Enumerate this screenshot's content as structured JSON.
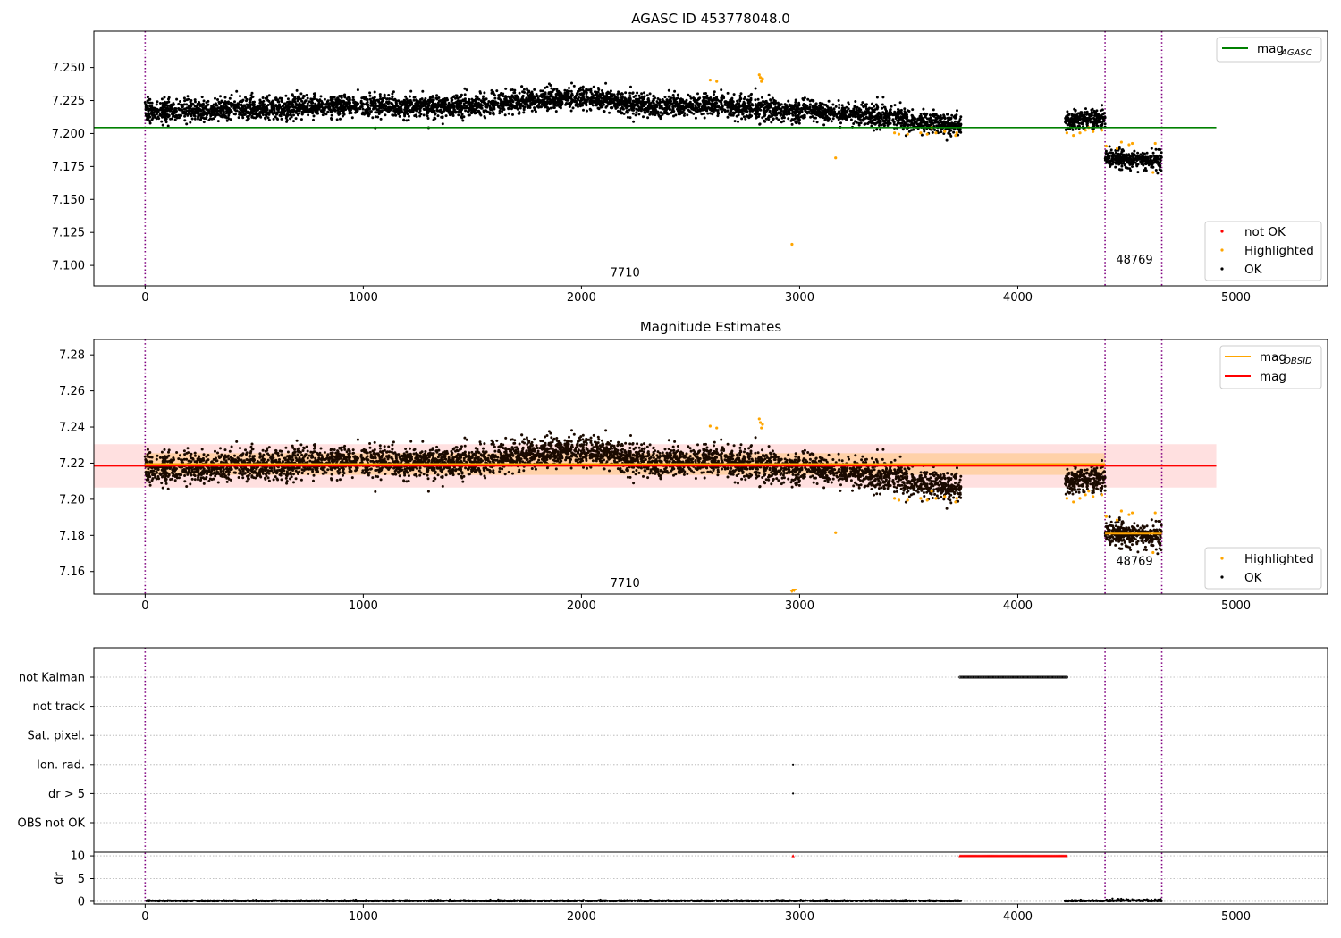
{
  "chart_data": [
    {
      "type": "scatter",
      "title": "AGASC ID 453778048.0",
      "xlim": [
        -235,
        5420
      ],
      "ylim": [
        7.0845,
        7.2775
      ],
      "xticks": [
        0,
        1000,
        2000,
        3000,
        4000,
        5000
      ],
      "yticks": [
        7.1,
        7.125,
        7.15,
        7.175,
        7.2,
        7.225,
        7.25
      ],
      "ytick_labels": [
        "7.100",
        "7.125",
        "7.150",
        "7.175",
        "7.200",
        "7.225",
        "7.250"
      ],
      "vlines": [
        0,
        4400,
        4660
      ],
      "hline": {
        "name": "mag",
        "sub": "AGASC",
        "y": 7.2045,
        "x": [
          -235,
          4910
        ],
        "color": "#008000"
      },
      "obs_labels": [
        {
          "text": "7710",
          "x": 2200,
          "y": 7.0915
        },
        {
          "text": "48769",
          "x": 4535,
          "y": 7.1015
        }
      ],
      "segments": [
        {
          "x": [
            0,
            3740
          ],
          "base": [
            7.2175,
            7.2175,
            7.2195,
            7.221,
            7.2205,
            7.2205,
            7.2245,
            7.2275,
            7.2205,
            7.2215,
            7.2185,
            7.216,
            7.2115,
            7.206
          ],
          "spread": 0.0042
        },
        {
          "x": [
            4215,
            4400
          ],
          "base": [
            7.2105,
            7.211
          ],
          "spread": 0.0036
        },
        {
          "x": [
            4400,
            4660
          ],
          "base": [
            7.1815,
            7.1795
          ],
          "spread": 0.0034
        }
      ],
      "highlighted": [
        [
          2590,
          7.2405
        ],
        [
          2620,
          7.2395
        ],
        [
          2815,
          7.2445
        ],
        [
          2820,
          7.2425
        ],
        [
          2825,
          7.2395
        ],
        [
          2830,
          7.2415
        ],
        [
          3165,
          7.1815
        ],
        [
          2965,
          7.116
        ],
        [
          3435,
          7.2005
        ],
        [
          3455,
          7.1995
        ],
        [
          3495,
          7.1995
        ],
        [
          3555,
          7.2005
        ],
        [
          3585,
          7.1995
        ],
        [
          3605,
          7.2045
        ],
        [
          3625,
          7.2005
        ],
        [
          3665,
          7.2015
        ],
        [
          3715,
          7.1985
        ],
        [
          3720,
          7.2005
        ],
        [
          4225,
          7.2005
        ],
        [
          4255,
          7.1985
        ],
        [
          4285,
          7.2005
        ],
        [
          4310,
          7.2025
        ],
        [
          4325,
          7.2045
        ],
        [
          4345,
          7.2015
        ],
        [
          4385,
          7.2025
        ],
        [
          4405,
          7.1905
        ],
        [
          4455,
          7.1885
        ],
        [
          4475,
          7.1935
        ],
        [
          4510,
          7.1915
        ],
        [
          4525,
          7.1925
        ],
        [
          4620,
          7.1705
        ],
        [
          4630,
          7.1925
        ]
      ],
      "legend_lines": [
        {
          "name": "mag",
          "sub": "AGASC",
          "color": "#008000"
        }
      ],
      "legend_points": [
        {
          "name": "not OK",
          "color": "#ff0000"
        },
        {
          "name": "Highlighted",
          "color": "#ffa500"
        },
        {
          "name": "OK",
          "color": "#000000"
        }
      ]
    },
    {
      "type": "scatter",
      "title": "Magnitude Estimates",
      "xlim": [
        -235,
        5420
      ],
      "ylim": [
        7.1475,
        7.2885
      ],
      "xticks": [
        0,
        1000,
        2000,
        3000,
        4000,
        5000
      ],
      "yticks": [
        7.16,
        7.18,
        7.2,
        7.22,
        7.24,
        7.26,
        7.28
      ],
      "ytick_labels": [
        "7.16",
        "7.18",
        "7.20",
        "7.22",
        "7.24",
        "7.26",
        "7.28"
      ],
      "vlines": [
        0,
        4400,
        4660
      ],
      "mag_band": {
        "y": 7.2185,
        "half_width": 0.012,
        "x": [
          -235,
          4910
        ]
      },
      "obsid_bands": [
        {
          "x": [
            0,
            4400
          ],
          "y": 7.2195,
          "half_width": 0.006
        },
        {
          "x": [
            4400,
            4660
          ],
          "y": 7.181,
          "half_width": 0.0015
        }
      ],
      "obs_labels": [
        {
          "text": "7710",
          "x": 2200,
          "y": 7.1515
        },
        {
          "text": "48769",
          "x": 4535,
          "y": 7.1635
        }
      ],
      "highlighted": [
        [
          2965,
          7.149
        ],
        [
          2975,
          7.1495
        ]
      ],
      "legend_lines": [
        {
          "name": "mag",
          "sub": "OBSID",
          "color": "#ffa500"
        },
        {
          "name": "mag",
          "sub": "",
          "color": "#ff0000"
        }
      ],
      "legend_points": [
        {
          "name": "Highlighted",
          "color": "#ffa500"
        },
        {
          "name": "OK",
          "color": "#000000"
        }
      ]
    },
    {
      "type": "scatter",
      "xlim": [
        -235,
        5420
      ],
      "flag_labels": [
        "not Kalman",
        "not track",
        "Sat. pixel.",
        "Ion. rad.",
        "dr > 5",
        "OBS not OK"
      ],
      "flags": [
        {
          "name": "not Kalman",
          "x": [
            3735,
            4225
          ],
          "step": 5
        },
        {
          "name": "Ion. rad.",
          "points": [
            2970
          ]
        },
        {
          "name": "dr > 5",
          "points": [
            2970
          ]
        }
      ],
      "dr": {
        "ylabel": "dr",
        "ylim": [
          -0.6,
          10.8
        ],
        "yticks": [
          0,
          5,
          10
        ],
        "ytick_labels": [
          "0",
          "5",
          "10"
        ],
        "xticks": [
          0,
          1000,
          2000,
          3000,
          4000,
          5000
        ],
        "clip_value": 10,
        "clipped_x": [
          [
            3735,
            4225
          ]
        ],
        "clipped_points": [
          2970
        ]
      },
      "vlines": [
        0,
        4400,
        4660
      ]
    }
  ]
}
